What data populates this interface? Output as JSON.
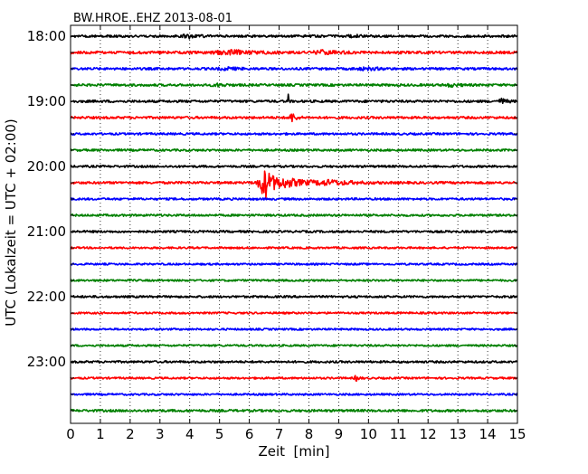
{
  "chart_data": {
    "type": "line",
    "title": "BW.HROE..EHZ 2013-08-01",
    "xlabel": "Zeit  [min]",
    "ylabel": "UTC (Lokalzeit = UTC + 02:00)",
    "xlim": [
      0,
      15
    ],
    "x_ticks": [
      "0",
      "1",
      "2",
      "3",
      "4",
      "5",
      "6",
      "7",
      "8",
      "9",
      "10",
      "11",
      "12",
      "13",
      "14",
      "15"
    ],
    "y_tick_labels": [
      "18:00",
      "19:00",
      "20:00",
      "21:00",
      "22:00",
      "23:00"
    ],
    "grid": true,
    "trace_colors": [
      "#000000",
      "#ff0000",
      "#0000ff",
      "#008000"
    ],
    "traces": [
      {
        "start": "18:00",
        "color": "#000000",
        "amplitude": 1.0,
        "bursts": [
          [
            4.0,
            0.6,
            1.2
          ],
          [
            9.5,
            0.5,
            0.9
          ]
        ]
      },
      {
        "start": "18:15",
        "color": "#ff0000",
        "amplitude": 1.1,
        "bursts": [
          [
            5.5,
            1.5,
            1.5
          ],
          [
            8.5,
            0.8,
            1.3
          ]
        ]
      },
      {
        "start": "18:30",
        "color": "#0000ff",
        "amplitude": 1.0,
        "bursts": [
          [
            5.3,
            0.8,
            0.8
          ],
          [
            10.0,
            1.0,
            0.8
          ]
        ]
      },
      {
        "start": "18:45",
        "color": "#008000",
        "amplitude": 1.0,
        "bursts": [
          [
            5.0,
            0.5,
            1.0
          ],
          [
            12.8,
            0.6,
            1.0
          ]
        ]
      },
      {
        "start": "19:00",
        "color": "#000000",
        "amplitude": 1.0,
        "bursts": [
          [
            7.3,
            0.05,
            7.0
          ],
          [
            14.5,
            0.3,
            2.0
          ]
        ]
      },
      {
        "start": "19:15",
        "color": "#ff0000",
        "amplitude": 1.0,
        "bursts": [
          [
            7.45,
            0.25,
            3.5
          ]
        ]
      },
      {
        "start": "19:30",
        "color": "#0000ff",
        "amplitude": 0.9,
        "bursts": []
      },
      {
        "start": "19:45",
        "color": "#008000",
        "amplitude": 0.9,
        "bursts": []
      },
      {
        "start": "20:00",
        "color": "#000000",
        "amplitude": 0.9,
        "bursts": []
      },
      {
        "start": "20:15",
        "color": "#ff0000",
        "amplitude": 1.0,
        "bursts": [
          [
            6.55,
            0.5,
            12.0
          ],
          [
            7.3,
            1.5,
            3.0
          ],
          [
            8.8,
            1.5,
            1.5
          ]
        ]
      },
      {
        "start": "20:30",
        "color": "#0000ff",
        "amplitude": 0.9,
        "bursts": []
      },
      {
        "start": "20:45",
        "color": "#008000",
        "amplitude": 0.9,
        "bursts": []
      },
      {
        "start": "21:00",
        "color": "#000000",
        "amplitude": 0.9,
        "bursts": []
      },
      {
        "start": "21:15",
        "color": "#ff0000",
        "amplitude": 0.8,
        "bursts": []
      },
      {
        "start": "21:30",
        "color": "#0000ff",
        "amplitude": 0.8,
        "bursts": []
      },
      {
        "start": "21:45",
        "color": "#008000",
        "amplitude": 0.8,
        "bursts": []
      },
      {
        "start": "22:00",
        "color": "#000000",
        "amplitude": 0.9,
        "bursts": []
      },
      {
        "start": "22:15",
        "color": "#ff0000",
        "amplitude": 0.8,
        "bursts": []
      },
      {
        "start": "22:30",
        "color": "#0000ff",
        "amplitude": 0.8,
        "bursts": []
      },
      {
        "start": "22:45",
        "color": "#008000",
        "amplitude": 0.8,
        "bursts": []
      },
      {
        "start": "23:00",
        "color": "#000000",
        "amplitude": 0.9,
        "bursts": []
      },
      {
        "start": "23:15",
        "color": "#ff0000",
        "amplitude": 0.8,
        "bursts": [
          [
            9.6,
            0.15,
            2.5
          ]
        ]
      },
      {
        "start": "23:30",
        "color": "#0000ff",
        "amplitude": 0.8,
        "bursts": []
      },
      {
        "start": "23:45",
        "color": "#008000",
        "amplitude": 1.0,
        "bursts": []
      }
    ]
  }
}
